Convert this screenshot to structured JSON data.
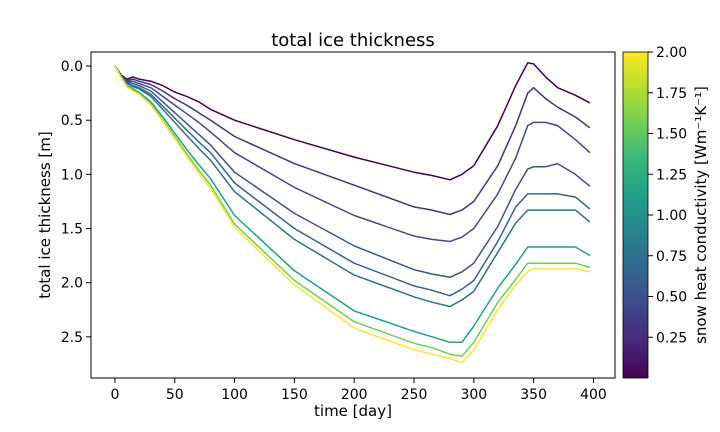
{
  "chart_data": {
    "type": "line",
    "title": "total ice thickness",
    "xlabel": "time [day]",
    "ylabel": "total ice thickness [m]",
    "xlim": [
      -20,
      418
    ],
    "ylim": [
      2.88,
      -0.13
    ],
    "y_inverted": true,
    "grid": false,
    "xticks": [
      0,
      50,
      100,
      150,
      200,
      250,
      300,
      350,
      400
    ],
    "yticks": [
      0.0,
      0.5,
      1.0,
      1.5,
      2.0,
      2.5
    ],
    "colorbar": {
      "label": "snow heat conductivity [Wm⁻¹K⁻¹]",
      "colormap": "viridis",
      "range": [
        0.0,
        2.0
      ],
      "ticks": [
        0.25,
        0.5,
        0.75,
        1.0,
        1.25,
        1.5,
        1.75,
        2.0
      ]
    },
    "time_days": [
      0,
      5,
      10,
      15,
      20,
      30,
      40,
      50,
      60,
      70,
      80,
      100,
      150,
      200,
      250,
      265,
      280,
      290,
      300,
      320,
      335,
      345,
      350,
      360,
      370,
      385,
      397
    ],
    "series": [
      {
        "conductivity": 0.05,
        "color": "#440154",
        "values": [
          0.0,
          0.08,
          0.12,
          0.1,
          0.12,
          0.14,
          0.18,
          0.24,
          0.28,
          0.33,
          0.4,
          0.5,
          0.68,
          0.84,
          0.98,
          1.01,
          1.05,
          1.0,
          0.92,
          0.55,
          0.18,
          -0.03,
          -0.02,
          0.1,
          0.2,
          0.27,
          0.34
        ]
      },
      {
        "conductivity": 0.15,
        "color": "#46327e",
        "values": [
          0.0,
          0.08,
          0.13,
          0.12,
          0.14,
          0.17,
          0.23,
          0.3,
          0.36,
          0.43,
          0.5,
          0.65,
          0.9,
          1.1,
          1.3,
          1.33,
          1.37,
          1.33,
          1.25,
          0.92,
          0.55,
          0.25,
          0.2,
          0.3,
          0.38,
          0.47,
          0.57
        ]
      },
      {
        "conductivity": 0.25,
        "color": "#3e4a89",
        "values": [
          0.0,
          0.08,
          0.14,
          0.14,
          0.16,
          0.2,
          0.28,
          0.36,
          0.44,
          0.52,
          0.61,
          0.8,
          1.12,
          1.38,
          1.57,
          1.6,
          1.62,
          1.58,
          1.5,
          1.18,
          0.85,
          0.55,
          0.52,
          0.52,
          0.55,
          0.68,
          0.8
        ]
      },
      {
        "conductivity": 0.35,
        "color": "#3a548c",
        "values": [
          0.0,
          0.09,
          0.15,
          0.16,
          0.18,
          0.23,
          0.33,
          0.43,
          0.53,
          0.63,
          0.73,
          0.98,
          1.36,
          1.66,
          1.88,
          1.92,
          1.95,
          1.9,
          1.82,
          1.48,
          1.14,
          0.95,
          0.93,
          0.93,
          0.9,
          1.0,
          1.11
        ]
      },
      {
        "conductivity": 0.45,
        "color": "#33638d",
        "values": [
          0.0,
          0.09,
          0.16,
          0.18,
          0.2,
          0.26,
          0.37,
          0.48,
          0.59,
          0.7,
          0.8,
          1.08,
          1.5,
          1.82,
          2.03,
          2.07,
          2.12,
          2.06,
          1.98,
          1.62,
          1.3,
          1.18,
          1.18,
          1.18,
          1.18,
          1.21,
          1.32
        ]
      },
      {
        "conductivity": 0.55,
        "color": "#2d718e",
        "values": [
          0.0,
          0.09,
          0.16,
          0.19,
          0.21,
          0.28,
          0.4,
          0.52,
          0.64,
          0.76,
          0.87,
          1.16,
          1.6,
          1.93,
          2.13,
          2.18,
          2.22,
          2.16,
          2.08,
          1.72,
          1.45,
          1.33,
          1.33,
          1.33,
          1.33,
          1.33,
          1.44
        ]
      },
      {
        "conductivity": 1.0,
        "color": "#1fa088",
        "values": [
          0.0,
          0.1,
          0.18,
          0.21,
          0.24,
          0.33,
          0.47,
          0.62,
          0.77,
          0.91,
          1.04,
          1.38,
          1.89,
          2.26,
          2.45,
          2.5,
          2.55,
          2.55,
          2.4,
          2.05,
          1.83,
          1.67,
          1.67,
          1.67,
          1.67,
          1.67,
          1.75
        ]
      },
      {
        "conductivity": 1.4,
        "color": "#6ece58",
        "values": [
          0.0,
          0.1,
          0.19,
          0.22,
          0.25,
          0.35,
          0.5,
          0.65,
          0.81,
          0.96,
          1.1,
          1.46,
          1.98,
          2.36,
          2.56,
          2.6,
          2.66,
          2.68,
          2.55,
          2.18,
          1.97,
          1.82,
          1.82,
          1.82,
          1.82,
          1.82,
          1.86
        ]
      },
      {
        "conductivity": 2.0,
        "color": "#fde725",
        "values": [
          0.0,
          0.1,
          0.19,
          0.23,
          0.26,
          0.36,
          0.51,
          0.67,
          0.83,
          0.99,
          1.13,
          1.49,
          2.02,
          2.42,
          2.62,
          2.66,
          2.7,
          2.74,
          2.62,
          2.25,
          2.02,
          1.9,
          1.87,
          1.87,
          1.87,
          1.87,
          1.9
        ]
      }
    ]
  }
}
